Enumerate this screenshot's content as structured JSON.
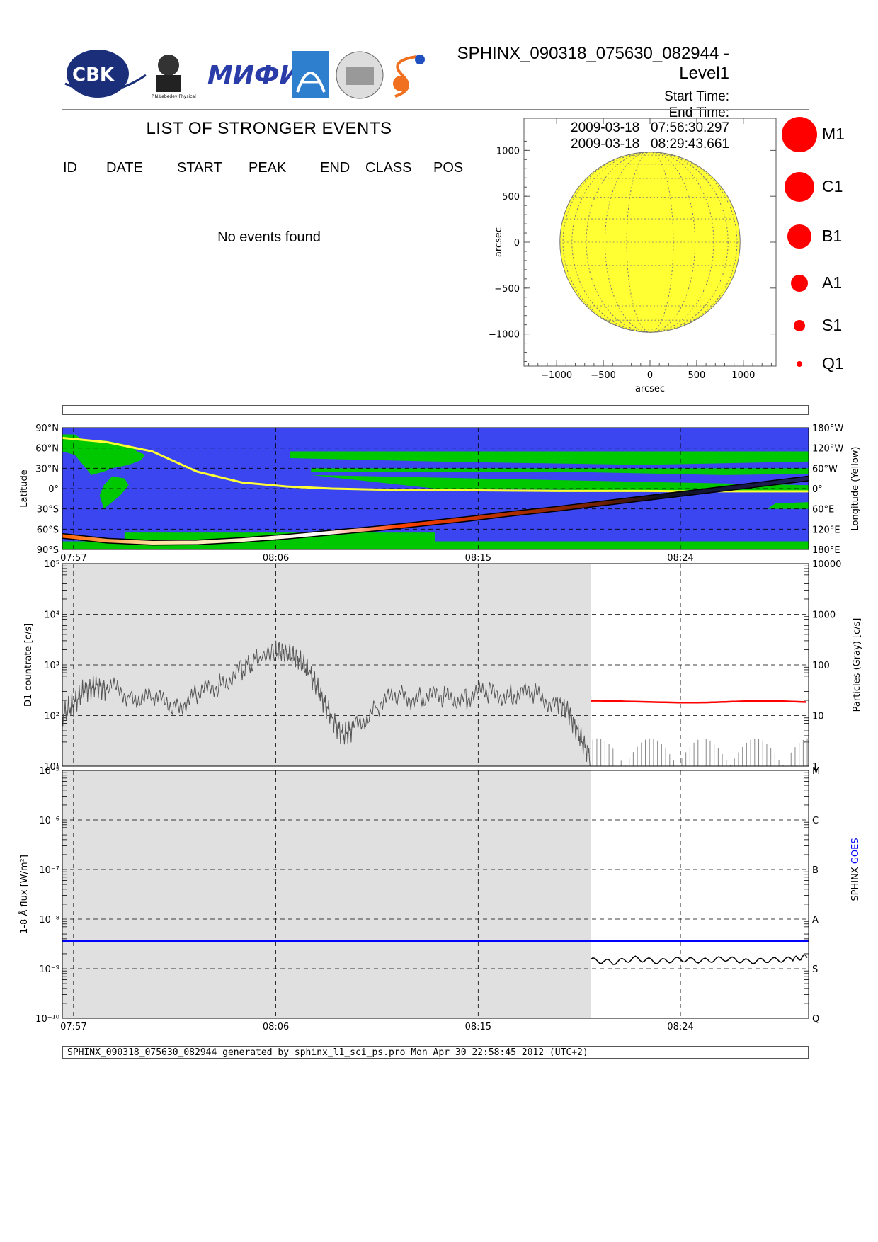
{
  "header": {
    "title": "SPHINX_090318_075630_082944 - Level1",
    "start_label": "Start Time:",
    "start_value": "2009-03-18   07:56:30.297",
    "end_label": "End Time:",
    "end_value": "2009-03-18   08:29:43.661"
  },
  "logos": [
    "CBK PAN",
    "P.N.Lebedev Physical Institute of the Russian Academy of Science",
    "MIFI",
    "arrow-logo",
    "Observatory",
    "sun-logo"
  ],
  "events": {
    "title": "LIST OF STRONGER EVENTS",
    "columns": [
      "ID",
      "DATE",
      "START",
      "PEAK",
      "END",
      "CLASS",
      "POS"
    ],
    "empty_message": "No events found"
  },
  "legend": {
    "items": [
      {
        "label": "M1",
        "size": 6
      },
      {
        "label": "C1",
        "size": 5
      },
      {
        "label": "B1",
        "size": 4
      },
      {
        "label": "A1",
        "size": 3
      },
      {
        "label": "S1",
        "size": 2
      },
      {
        "label": "Q1",
        "size": 1
      }
    ],
    "color": "#ff0000"
  },
  "chart_data": [
    {
      "type": "scatter",
      "name": "solar-disk",
      "xlabel": "arcsec",
      "ylabel": "arcsec",
      "xlim": [
        -1350,
        1350
      ],
      "ylim": [
        -1350,
        1350
      ],
      "x_ticks": [
        -1000,
        -500,
        0,
        500,
        1000
      ],
      "y_ticks": [
        -1000,
        -500,
        0,
        500,
        1000
      ],
      "x_tick_labels": [
        "−1000",
        "−500",
        "0",
        "500",
        "1000"
      ],
      "y_tick_labels": [
        "−1000",
        "−500",
        "0",
        "500",
        "1000"
      ],
      "disk_radius": 965,
      "disk_color": "#ffff33",
      "events": []
    },
    {
      "type": "line",
      "name": "orbit-map",
      "ylabel_left": "Latitude",
      "ylabel_right": "Longitude (Yellow)",
      "x_tick_labels": [
        "07:57",
        "08:06",
        "08:15",
        "08:24"
      ],
      "x_ticks_min": [
        0.5,
        9.5,
        18.5,
        27.5
      ],
      "xlim_min": [
        0,
        33.2
      ],
      "lat_ticks": [
        90,
        60,
        30,
        0,
        -30,
        -60,
        -90
      ],
      "lat_tick_labels": [
        "90°N",
        "60°N",
        "30°N",
        "0°",
        "30°S",
        "60°S",
        "90°S"
      ],
      "lon_tick_labels": [
        "180°W",
        "120°W",
        "60°W",
        "0°",
        "60°E",
        "120°E",
        "180°E"
      ],
      "colors": {
        "ocean": "#3c46f0",
        "land": "#00c800",
        "longitude": "#ffff33"
      },
      "latitude_track": {
        "t": [
          0,
          2,
          4,
          6,
          8,
          10,
          12,
          14,
          16,
          18,
          20,
          22,
          24,
          26,
          28,
          30,
          33.2
        ],
        "lat": [
          -70,
          -77,
          -80,
          -79.5,
          -76,
          -71,
          -65,
          -59,
          -52,
          -45,
          -37,
          -30,
          -22,
          -14,
          -6,
          2,
          15
        ]
      },
      "longitude_track": {
        "t": [
          0,
          2,
          4,
          6,
          8,
          10,
          12,
          14,
          16,
          18,
          20,
          22,
          24,
          26,
          28,
          30,
          33.2
        ],
        "lon_axis": [
          150,
          137,
          110,
          50,
          18,
          6,
          0,
          -3,
          -4,
          -5,
          -6,
          -7,
          -7,
          -7,
          -8,
          -8,
          -8
        ]
      }
    },
    {
      "type": "line",
      "name": "d1-countrate",
      "ylabel_left": "D1 countrate [c/s]",
      "ylabel_right": "Particles (Gray) [c/s]",
      "yscale": "log",
      "ylim": [
        10,
        100000
      ],
      "y_tick_labels": [
        "10¹",
        "10²",
        "10³",
        "10⁴",
        "10⁵"
      ],
      "y_right_tick_labels": [
        "1",
        "10",
        "100",
        "1000",
        "10000"
      ],
      "x_tick_labels": [
        "07:57",
        "08:06",
        "08:15",
        "08:24"
      ],
      "gray_region_end_min": 23.5,
      "series": [
        {
          "color": "#555555",
          "t": [
            0,
            0.5,
            1,
            1.5,
            2,
            3,
            4,
            5,
            6,
            7,
            8,
            8.8,
            9.5,
            10,
            10.5,
            11,
            11.5,
            12,
            12.5,
            13,
            14,
            15,
            16,
            17,
            18,
            19,
            20,
            21,
            22,
            22.5,
            23,
            23.5
          ],
          "values": [
            100,
            170,
            320,
            380,
            330,
            270,
            200,
            170,
            230,
            430,
            800,
            1400,
            1900,
            1700,
            1300,
            700,
            250,
            90,
            40,
            60,
            150,
            250,
            230,
            220,
            240,
            270,
            270,
            240,
            190,
            120,
            40,
            15
          ]
        },
        {
          "color": "#ff0000",
          "t": [
            23.5,
            25,
            27,
            29,
            31,
            33.2
          ],
          "values": [
            190,
            185,
            188,
            186,
            187,
            185
          ]
        }
      ]
    },
    {
      "type": "line",
      "name": "goes-flux",
      "ylabel_left": "1-8 Å flux [W/m²]",
      "ylabel_right": [
        "SPHINX",
        "GOES"
      ],
      "yscale": "log",
      "ylim": [
        1e-10,
        1e-05
      ],
      "y_tick_labels": [
        "10⁻¹⁰",
        "10⁻⁹",
        "10⁻⁸",
        "10⁻⁷",
        "10⁻⁶",
        "10⁻⁵"
      ],
      "class_labels": [
        "Q",
        "S",
        "A",
        "B",
        "C",
        "M"
      ],
      "x_tick_labels": [
        "07:57",
        "08:06",
        "08:15",
        "08:24"
      ],
      "gray_region_end_min": 23.5,
      "series": [
        {
          "name": "GOES",
          "color": "#0000ff",
          "t": [
            0,
            33.2
          ],
          "values": [
            3.6e-09,
            3.6e-09
          ]
        },
        {
          "name": "SPHINX",
          "color": "#000000",
          "t": [
            23.5,
            24.5,
            25.5,
            26.5,
            27.5,
            28.5,
            29.5,
            30.5,
            31.5,
            32.5,
            33.2
          ],
          "values": [
            1.5e-09,
            1.35e-09,
            1.6e-09,
            1.4e-09,
            1.55e-09,
            1.45e-09,
            1.6e-09,
            1.4e-09,
            1.5e-09,
            1.55e-09,
            1.8e-09
          ]
        }
      ]
    }
  ],
  "footer": {
    "text": "SPHINX_090318_075630_082944 generated by sphinx_l1_sci_ps.pro Mon Apr 30 22:58:45 2012 (UTC+2)"
  }
}
